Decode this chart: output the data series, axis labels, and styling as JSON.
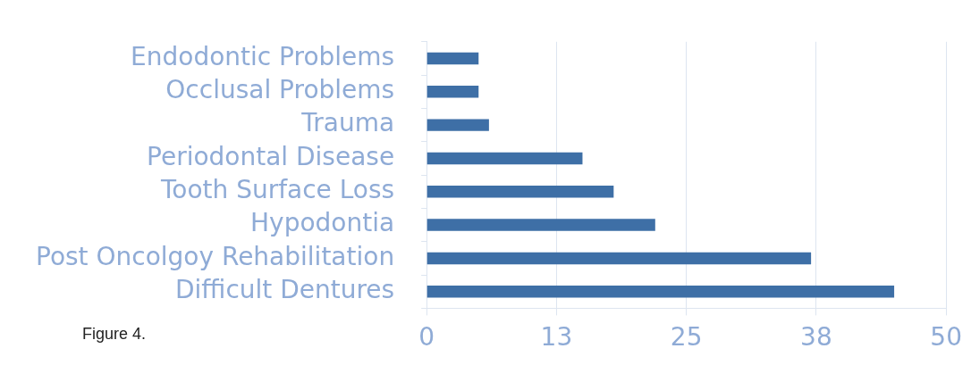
{
  "chart_data": {
    "type": "bar",
    "orientation": "horizontal",
    "categories": [
      "Endodontic Problems",
      "Occlusal Problems",
      "Trauma",
      "Periodontal Disease",
      "Tooth Surface Loss",
      "Hypodontia",
      "Post Oncolgoy Rehabilitation",
      "Difficult Dentures"
    ],
    "values": [
      5,
      5,
      6,
      15,
      18,
      22,
      37,
      45
    ],
    "color": "#3e6fa6",
    "xlim": [
      0,
      50
    ],
    "xticks": [
      0,
      {
        "value": 12.5,
        "label": "13"
      },
      25,
      {
        "value": 37.5,
        "label": "38"
      },
      50
    ],
    "grid": "x",
    "legend": false,
    "annotations": [
      "Figure 4."
    ]
  }
}
